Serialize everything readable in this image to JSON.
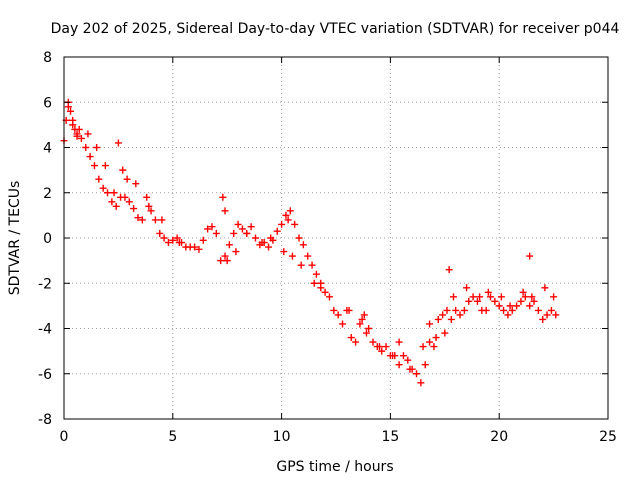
{
  "chart_data": {
    "type": "scatter",
    "title": "Day 202 of 2025, Sidereal Day-to-day VTEC variation (SDTVAR) for receiver p044",
    "xlabel": "GPS time / hours",
    "ylabel": "SDTVAR / TECUs",
    "xlim": [
      0,
      25
    ],
    "ylim": [
      -8,
      8
    ],
    "xticks": [
      0,
      5,
      10,
      15,
      20,
      25
    ],
    "yticks": [
      -8,
      -6,
      -4,
      -2,
      0,
      2,
      4,
      6,
      8
    ],
    "grid": true,
    "marker": "+",
    "color": "#ff0000",
    "series": [
      {
        "name": "SDTVAR",
        "x": [
          0.0,
          0.1,
          0.2,
          0.3,
          0.4,
          0.5,
          0.6,
          0.7,
          0.8,
          1.0,
          1.2,
          1.4,
          1.6,
          1.8,
          2.0,
          2.2,
          2.4,
          2.6,
          2.8,
          3.0,
          3.2,
          3.4,
          3.6,
          3.8,
          4.0,
          4.2,
          4.4,
          4.6,
          4.8,
          5.0,
          5.2,
          5.4,
          5.6,
          5.8,
          6.0,
          6.2,
          6.4,
          6.6,
          6.8,
          7.0,
          7.2,
          7.4,
          7.6,
          7.8,
          8.0,
          8.2,
          8.4,
          8.6,
          8.8,
          9.0,
          9.2,
          9.4,
          9.6,
          9.8,
          10.0,
          10.2,
          10.4,
          10.6,
          10.8,
          11.0,
          11.2,
          11.4,
          11.6,
          11.8,
          12.0,
          12.2,
          12.4,
          12.6,
          12.8,
          13.0,
          13.2,
          13.4,
          13.6,
          13.8,
          14.0,
          14.2,
          14.4,
          14.6,
          14.8,
          15.0,
          15.2,
          15.4,
          15.6,
          15.8,
          16.0,
          16.2,
          16.4,
          16.6,
          16.8,
          17.0,
          17.2,
          17.4,
          17.6,
          17.8,
          18.0,
          18.2,
          18.4,
          18.6,
          18.8,
          19.0,
          19.2,
          19.4,
          19.6,
          19.8,
          20.0,
          20.2,
          20.4,
          20.6,
          20.8,
          21.0,
          21.2,
          21.4,
          21.6,
          21.8,
          22.0,
          22.2,
          22.4,
          22.6,
          0.2,
          0.4,
          0.6,
          1.1,
          1.5,
          1.9,
          2.5,
          2.7,
          3.3,
          3.9,
          4.5,
          5.3,
          7.3,
          7.5,
          7.9,
          8.4,
          9.1,
          9.5,
          10.1,
          10.5,
          10.9,
          11.5,
          13.1,
          13.9,
          14.5,
          15.1,
          15.9,
          16.5,
          17.1,
          17.5,
          17.9,
          18.5,
          19.1,
          19.5,
          20.1,
          20.5,
          21.1,
          21.5,
          22.1,
          22.5,
          2.3,
          2.9,
          7.4,
          15.4,
          16.8,
          17.7,
          21.4,
          10.3,
          11.8,
          13.7
        ],
        "y": [
          4.3,
          5.2,
          6.0,
          5.6,
          5.0,
          4.8,
          4.5,
          4.8,
          4.4,
          4.0,
          3.6,
          3.2,
          2.6,
          2.2,
          2.0,
          1.6,
          1.4,
          1.8,
          1.8,
          1.6,
          1.3,
          0.9,
          0.8,
          1.8,
          1.2,
          0.8,
          0.2,
          0.0,
          -0.2,
          -0.1,
          0.0,
          -0.2,
          -0.4,
          -0.4,
          -0.4,
          -0.5,
          -0.1,
          0.4,
          0.5,
          0.2,
          -1.0,
          -0.8,
          -0.3,
          0.2,
          0.6,
          0.4,
          0.2,
          0.5,
          0.0,
          -0.3,
          -0.2,
          -0.4,
          -0.1,
          0.3,
          0.6,
          1.0,
          1.2,
          0.6,
          0.0,
          -0.3,
          -0.8,
          -1.2,
          -1.6,
          -2.0,
          -2.4,
          -2.6,
          -3.2,
          -3.4,
          -3.8,
          -3.2,
          -4.4,
          -4.6,
          -3.8,
          -3.4,
          -4.0,
          -4.6,
          -4.8,
          -5.0,
          -4.8,
          -5.2,
          -5.2,
          -5.6,
          -5.2,
          -5.4,
          -5.8,
          -6.0,
          -6.4,
          -5.6,
          -4.6,
          -4.8,
          -3.6,
          -3.4,
          -3.2,
          -3.6,
          -3.2,
          -3.4,
          -3.2,
          -2.8,
          -2.6,
          -2.8,
          -3.2,
          -3.2,
          -2.6,
          -2.8,
          -3.0,
          -3.2,
          -3.4,
          -3.2,
          -3.0,
          -2.8,
          -2.6,
          -3.0,
          -2.8,
          -3.2,
          -3.6,
          -3.4,
          -3.2,
          -3.4,
          5.8,
          5.2,
          4.6,
          4.6,
          4.0,
          3.2,
          4.2,
          3.0,
          2.4,
          1.4,
          0.8,
          -0.2,
          1.8,
          -1.0,
          -0.6,
          0.2,
          -0.2,
          0.0,
          -0.6,
          -0.8,
          -1.2,
          -2.0,
          -3.2,
          -4.2,
          -4.8,
          -5.2,
          -5.8,
          -4.8,
          -4.4,
          -4.2,
          -2.6,
          -2.2,
          -2.6,
          -2.4,
          -2.6,
          -3.0,
          -2.4,
          -2.6,
          -2.2,
          -2.6,
          2.0,
          2.6,
          1.2,
          -4.6,
          -3.8,
          -1.4,
          -0.8,
          0.8,
          -2.2,
          -3.6
        ]
      }
    ]
  }
}
